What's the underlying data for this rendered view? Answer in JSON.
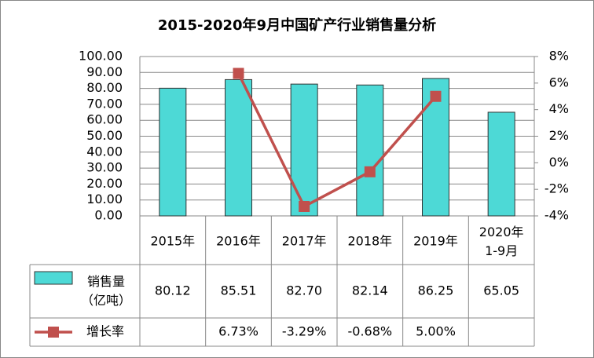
{
  "chart_data": {
    "type": "bar-line-table",
    "title": "2015-2020年9月中国矿产行业销售量分析",
    "categories": [
      "2015年",
      "2016年",
      "2017年",
      "2018年",
      "2019年",
      "2020年\n1-9月"
    ],
    "series": [
      {
        "name": "销售量\n（亿吨）",
        "type": "bar",
        "color": "#4dd9d6",
        "values": [
          80.12,
          85.51,
          82.7,
          82.14,
          86.25,
          65.05
        ],
        "value_labels": [
          "80.12",
          "85.51",
          "82.70",
          "82.14",
          "86.25",
          "65.05"
        ]
      },
      {
        "name": "增长率",
        "type": "line",
        "color": "#c0504d",
        "axis": "y2",
        "values": [
          null,
          6.73,
          -3.29,
          -0.68,
          5.0,
          null
        ],
        "value_labels": [
          null,
          "6.73%",
          "-3.29%",
          "-0.68%",
          "5.00%",
          null
        ]
      }
    ],
    "ylim": [
      0,
      100
    ],
    "yticks": [
      {
        "value": 0,
        "label": "0.00"
      },
      {
        "value": 10,
        "label": "10.00"
      },
      {
        "value": 20,
        "label": "20.00"
      },
      {
        "value": 30,
        "label": "30.00"
      },
      {
        "value": 40,
        "label": "40.00"
      },
      {
        "value": 50,
        "label": "50.00"
      },
      {
        "value": 60,
        "label": "60.00"
      },
      {
        "value": 70,
        "label": "70.00"
      },
      {
        "value": 80,
        "label": "80.00"
      },
      {
        "value": 90,
        "label": "90.00"
      },
      {
        "value": 100,
        "label": "100.00"
      }
    ],
    "y2lim": [
      -4,
      8
    ],
    "y2ticks": [
      {
        "value": -4,
        "label": "-4%"
      },
      {
        "value": -2,
        "label": "-2%"
      },
      {
        "value": 0,
        "label": "0%"
      },
      {
        "value": 2,
        "label": "2%"
      },
      {
        "value": 4,
        "label": "4%"
      },
      {
        "value": 6,
        "label": "6%"
      },
      {
        "value": 8,
        "label": "8%"
      }
    ],
    "grid": true
  }
}
